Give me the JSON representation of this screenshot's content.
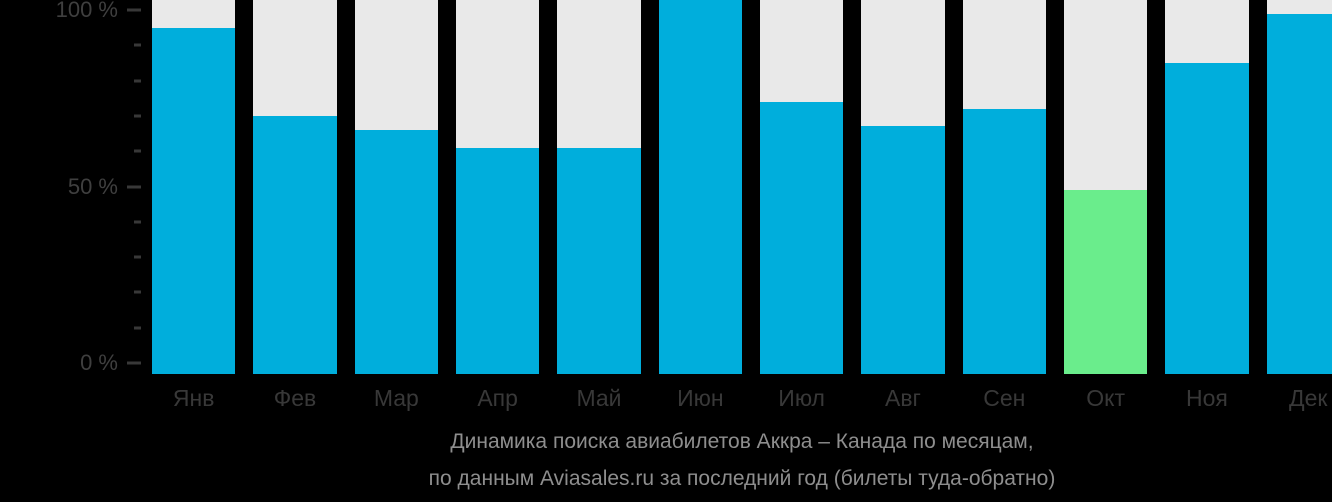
{
  "chart_data": {
    "type": "bar",
    "title": "Динамика поиска авиабилетов Аккра – Канада по месяцам, по данным Aviasales.ru за последний год (билеты туда-обратно)",
    "title_lines": [
      "Динамика поиска авиабилетов Аккра – Канада по месяцам,",
      "по данным Aviasales.ru за последний год (билеты туда-обратно)"
    ],
    "categories": [
      "Янв",
      "Фев",
      "Мар",
      "Апр",
      "Май",
      "Июн",
      "Июл",
      "Авг",
      "Сен",
      "Окт",
      "Ноя",
      "Дек"
    ],
    "values": [
      95,
      70,
      66,
      61,
      61,
      100,
      74,
      67,
      72,
      49,
      85,
      99
    ],
    "unit": "%",
    "highlight": {
      "index": 9,
      "category": "Окт"
    },
    "ylim": [
      0,
      100
    ],
    "y_ticks": [
      {
        "pct": 100,
        "label": "100 %"
      },
      {
        "pct": 50,
        "label": "50 %"
      },
      {
        "pct": 0,
        "label": "0 %"
      }
    ],
    "minor_tick_step_pct": 10,
    "legend": "none",
    "grid": "off",
    "colors": {
      "bar": "#00aedc",
      "highlight": "#6aed8c",
      "track": "#e9e9e9",
      "background": "#000000",
      "axis_text": "#3f3f3f",
      "caption_text": "#8e8e8e"
    }
  }
}
